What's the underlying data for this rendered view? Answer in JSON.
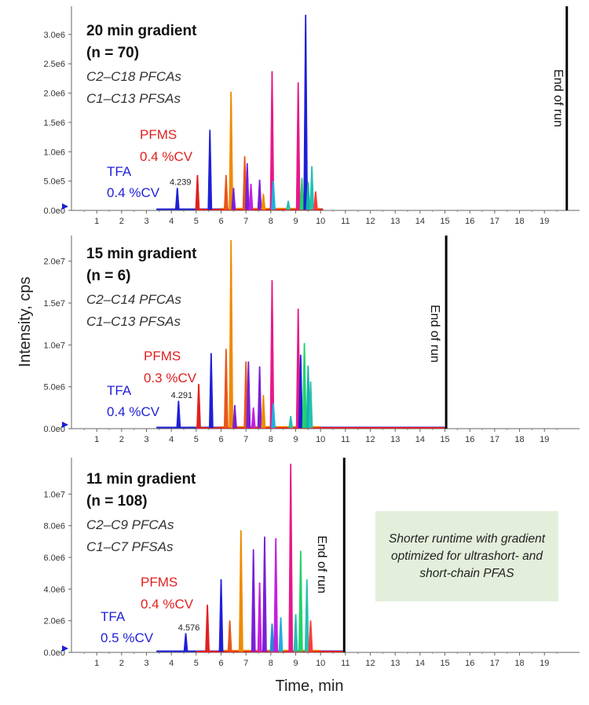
{
  "ylabel": "Intensity, cps",
  "xlabel": "Time, min",
  "note": "Shorter runtime with gradient optimized for ultrashort- and short-chain PFAS",
  "colors": {
    "tfa": "#1f1fd6",
    "pfms": "#e02020",
    "palette": [
      "#e8561a",
      "#f08a00",
      "#7a1fd6",
      "#c41fe0",
      "#e8188a",
      "#1f8fd6",
      "#1faee0",
      "#26c0b0",
      "#22d36a",
      "#12b3a8",
      "#ff3b3b"
    ]
  },
  "chart_data": [
    {
      "type": "line",
      "title": "20 min gradient",
      "n_text": "(n = 70)",
      "n_prefix": "(",
      "n_var": "n",
      "n_suffix": " = 70)",
      "line1": "C2–C18 PFCAs",
      "line2": "C1–C13 PFSAs",
      "pfms_label": "PFMS",
      "pfms_cv": "0.4 %CV",
      "tfa_label": "TFA",
      "tfa_cv": "0.4 %CV",
      "tfa_rt": "4.239",
      "end_label": "End of run",
      "end_time": 19.9,
      "xlim": [
        0,
        20
      ],
      "ymax": 3400000.0,
      "yticks": [
        "0.0e0",
        "5.0e5",
        "1.0e6",
        "1.5e6",
        "2.0e6",
        "2.5e6",
        "3.0e6"
      ],
      "ytick_values": [
        0,
        500000,
        1000000,
        1500000,
        2000000,
        2500000,
        3000000
      ],
      "xticks": [
        1,
        2,
        3,
        4,
        5,
        6,
        7,
        8,
        9,
        10,
        11,
        12,
        13,
        14,
        15,
        16,
        17,
        18,
        19
      ],
      "baseline_end": 10.1,
      "peaks": [
        {
          "t": 4.24,
          "h": 380000,
          "c": 0
        },
        {
          "t": 5.05,
          "h": 600000,
          "c": 1
        },
        {
          "t": 5.55,
          "h": 1370000,
          "c": 0
        },
        {
          "t": 6.2,
          "h": 600000,
          "c": 2
        },
        {
          "t": 6.4,
          "h": 2020000,
          "c": 3
        },
        {
          "t": 6.5,
          "h": 380000,
          "c": 4
        },
        {
          "t": 6.95,
          "h": 920000,
          "c": 2
        },
        {
          "t": 7.05,
          "h": 800000,
          "c": 4
        },
        {
          "t": 7.2,
          "h": 450000,
          "c": 5
        },
        {
          "t": 7.55,
          "h": 520000,
          "c": 4
        },
        {
          "t": 7.7,
          "h": 280000,
          "c": 3
        },
        {
          "t": 8.05,
          "h": 2370000,
          "c": 6
        },
        {
          "t": 8.1,
          "h": 500000,
          "c": 8
        },
        {
          "t": 8.7,
          "h": 160000,
          "c": 9
        },
        {
          "t": 9.1,
          "h": 2180000,
          "c": 6
        },
        {
          "t": 9.25,
          "h": 550000,
          "c": 10
        },
        {
          "t": 9.4,
          "h": 3330000,
          "c": 0
        },
        {
          "t": 9.5,
          "h": 480000,
          "c": 11
        },
        {
          "t": 9.65,
          "h": 750000,
          "c": 9
        },
        {
          "t": 9.8,
          "h": 320000,
          "c": 12
        }
      ]
    },
    {
      "type": "line",
      "title": "15 min gradient",
      "n_text": "(n = 6)",
      "n_prefix": "(",
      "n_var": "n",
      "n_suffix": " = 6)",
      "line1": "C2–C14 PFCAs",
      "line2": "C1–C13 PFSAs",
      "pfms_label": "PFMS",
      "pfms_cv": "0.3 %CV",
      "tfa_label": "TFA",
      "tfa_cv": "0.4 %CV",
      "tfa_rt": "4.291",
      "end_label": "End of run",
      "end_time": 15.05,
      "xlim": [
        0,
        20
      ],
      "ymax": 22500000.0,
      "yticks": [
        "0.0e0",
        "5.0e6",
        "1.0e7",
        "1.5e7",
        "2.0e7"
      ],
      "ytick_values": [
        0,
        5000000,
        10000000,
        15000000,
        20000000
      ],
      "xticks": [
        1,
        2,
        3,
        4,
        5,
        6,
        7,
        8,
        9,
        10,
        11,
        12,
        13,
        14,
        15,
        16,
        17,
        18,
        19
      ],
      "baseline_end": 15.0,
      "peaks": [
        {
          "t": 4.29,
          "h": 3300000,
          "c": 0
        },
        {
          "t": 5.1,
          "h": 5300000,
          "c": 1
        },
        {
          "t": 5.6,
          "h": 9000000,
          "c": 0
        },
        {
          "t": 6.2,
          "h": 9500000,
          "c": 2
        },
        {
          "t": 6.4,
          "h": 22500000,
          "c": 3
        },
        {
          "t": 6.55,
          "h": 2800000,
          "c": 4
        },
        {
          "t": 7.0,
          "h": 8000000,
          "c": 2
        },
        {
          "t": 7.1,
          "h": 8000000,
          "c": 4
        },
        {
          "t": 7.3,
          "h": 2500000,
          "c": 5
        },
        {
          "t": 7.55,
          "h": 7400000,
          "c": 4
        },
        {
          "t": 7.7,
          "h": 4000000,
          "c": 3
        },
        {
          "t": 8.05,
          "h": 17700000,
          "c": 6
        },
        {
          "t": 8.1,
          "h": 3000000,
          "c": 8
        },
        {
          "t": 8.8,
          "h": 1500000,
          "c": 9
        },
        {
          "t": 9.1,
          "h": 14300000,
          "c": 6
        },
        {
          "t": 9.2,
          "h": 8800000,
          "c": 0
        },
        {
          "t": 9.35,
          "h": 10200000,
          "c": 10
        },
        {
          "t": 9.5,
          "h": 7500000,
          "c": 11
        },
        {
          "t": 9.6,
          "h": 5600000,
          "c": 9
        }
      ]
    },
    {
      "type": "line",
      "title": "11 min gradient",
      "n_text": "(n = 108)",
      "n_prefix": "(",
      "n_var": "n",
      "n_suffix": " = 108)",
      "line1": "C2–C9 PFCAs",
      "line2": "C1–C7 PFSAs",
      "pfms_label": "PFMS",
      "pfms_cv": "0.4 %CV",
      "tfa_label": "TFA",
      "tfa_cv": "0.5 %CV",
      "tfa_rt": "4.576",
      "end_label": "End of run",
      "end_time": 10.95,
      "xlim": [
        0,
        20
      ],
      "ymax": 12000000.0,
      "yticks": [
        "0.0e0",
        "2.0e6",
        "4.0e6",
        "6.0e6",
        "8.0e6",
        "1.0e7"
      ],
      "ytick_values": [
        0,
        2000000,
        4000000,
        6000000,
        8000000,
        10000000
      ],
      "xticks": [
        1,
        2,
        3,
        4,
        5,
        6,
        7,
        8,
        9,
        10,
        11,
        12,
        13,
        14,
        15,
        16,
        17,
        18,
        19
      ],
      "baseline_end": 10.9,
      "peaks": [
        {
          "t": 4.58,
          "h": 1200000,
          "c": 0
        },
        {
          "t": 5.45,
          "h": 3000000,
          "c": 1
        },
        {
          "t": 6.0,
          "h": 4600000,
          "c": 0
        },
        {
          "t": 6.35,
          "h": 2000000,
          "c": 2
        },
        {
          "t": 6.8,
          "h": 7700000,
          "c": 3
        },
        {
          "t": 7.3,
          "h": 6500000,
          "c": 4
        },
        {
          "t": 7.55,
          "h": 4400000,
          "c": 5
        },
        {
          "t": 7.75,
          "h": 7300000,
          "c": 4
        },
        {
          "t": 8.05,
          "h": 1800000,
          "c": 7
        },
        {
          "t": 8.2,
          "h": 7200000,
          "c": 5
        },
        {
          "t": 8.4,
          "h": 2200000,
          "c": 8
        },
        {
          "t": 8.8,
          "h": 11900000,
          "c": 6
        },
        {
          "t": 9.0,
          "h": 2400000,
          "c": 9
        },
        {
          "t": 9.2,
          "h": 6400000,
          "c": 10
        },
        {
          "t": 9.45,
          "h": 4600000,
          "c": 9
        },
        {
          "t": 9.6,
          "h": 2000000,
          "c": 12
        }
      ]
    }
  ]
}
